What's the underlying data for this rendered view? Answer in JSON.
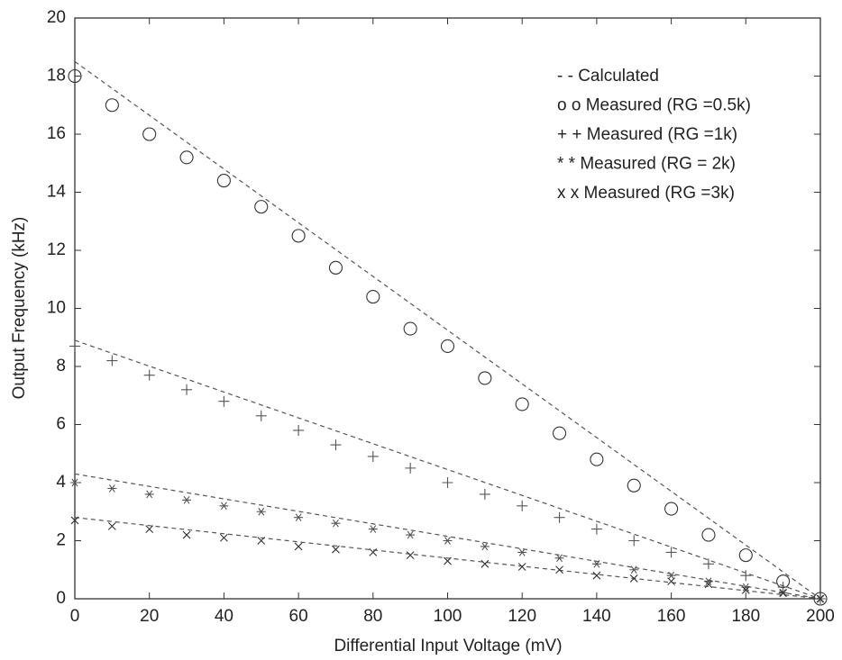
{
  "chart_data": {
    "type": "scatter",
    "xlabel": "Differential Input Voltage (mV)",
    "ylabel": "Output Frequency (kHz)",
    "xlim": [
      0,
      200
    ],
    "ylim": [
      0,
      20
    ],
    "xticks": [
      0,
      20,
      40,
      60,
      80,
      100,
      120,
      140,
      160,
      180,
      200
    ],
    "yticks": [
      0,
      2,
      4,
      6,
      8,
      10,
      12,
      14,
      16,
      18,
      20
    ],
    "grid": false,
    "legend": "upper right",
    "x": [
      0,
      10,
      20,
      30,
      40,
      50,
      60,
      70,
      80,
      90,
      100,
      110,
      120,
      130,
      140,
      150,
      160,
      170,
      180,
      190,
      200
    ],
    "series": [
      {
        "name": "- -  Calculated",
        "style": "dashed",
        "color": "#555555",
        "lines": [
          {
            "x": [
              0,
              200
            ],
            "values": [
              18.5,
              0
            ]
          },
          {
            "x": [
              0,
              200
            ],
            "values": [
              8.9,
              0
            ]
          },
          {
            "x": [
              0,
              200
            ],
            "values": [
              4.3,
              0
            ]
          },
          {
            "x": [
              0,
              200
            ],
            "values": [
              2.8,
              0
            ]
          }
        ]
      },
      {
        "name": "o o Measured (RG =0.5k)",
        "marker": "o",
        "color": "#333333",
        "values": [
          18.0,
          17.0,
          16.0,
          15.2,
          14.4,
          13.5,
          12.5,
          11.4,
          10.4,
          9.3,
          8.7,
          7.6,
          6.7,
          5.7,
          4.8,
          3.9,
          3.1,
          2.2,
          1.5,
          0.6,
          0
        ]
      },
      {
        "name": "+ + Measured (RG =1k)",
        "marker": "+",
        "color": "#555555",
        "values": [
          8.7,
          8.2,
          7.7,
          7.2,
          6.8,
          6.3,
          5.8,
          5.3,
          4.9,
          4.5,
          4.0,
          3.6,
          3.2,
          2.8,
          2.4,
          2.0,
          1.6,
          1.2,
          0.8,
          0.4,
          0
        ]
      },
      {
        "name": "* *  Measured (RG = 2k)",
        "marker": "*",
        "color": "#555555",
        "values": [
          4.0,
          3.8,
          3.6,
          3.4,
          3.2,
          3.0,
          2.8,
          2.6,
          2.4,
          2.2,
          2.0,
          1.8,
          1.6,
          1.4,
          1.2,
          1.0,
          0.8,
          0.6,
          0.4,
          0.2,
          0
        ]
      },
      {
        "name": "x x Measured (RG =3k)",
        "marker": "x",
        "color": "#333333",
        "values": [
          2.7,
          2.5,
          2.4,
          2.2,
          2.1,
          2.0,
          1.8,
          1.7,
          1.6,
          1.5,
          1.3,
          1.2,
          1.1,
          1.0,
          0.8,
          0.7,
          0.6,
          0.5,
          0.3,
          0.2,
          0
        ]
      }
    ]
  }
}
